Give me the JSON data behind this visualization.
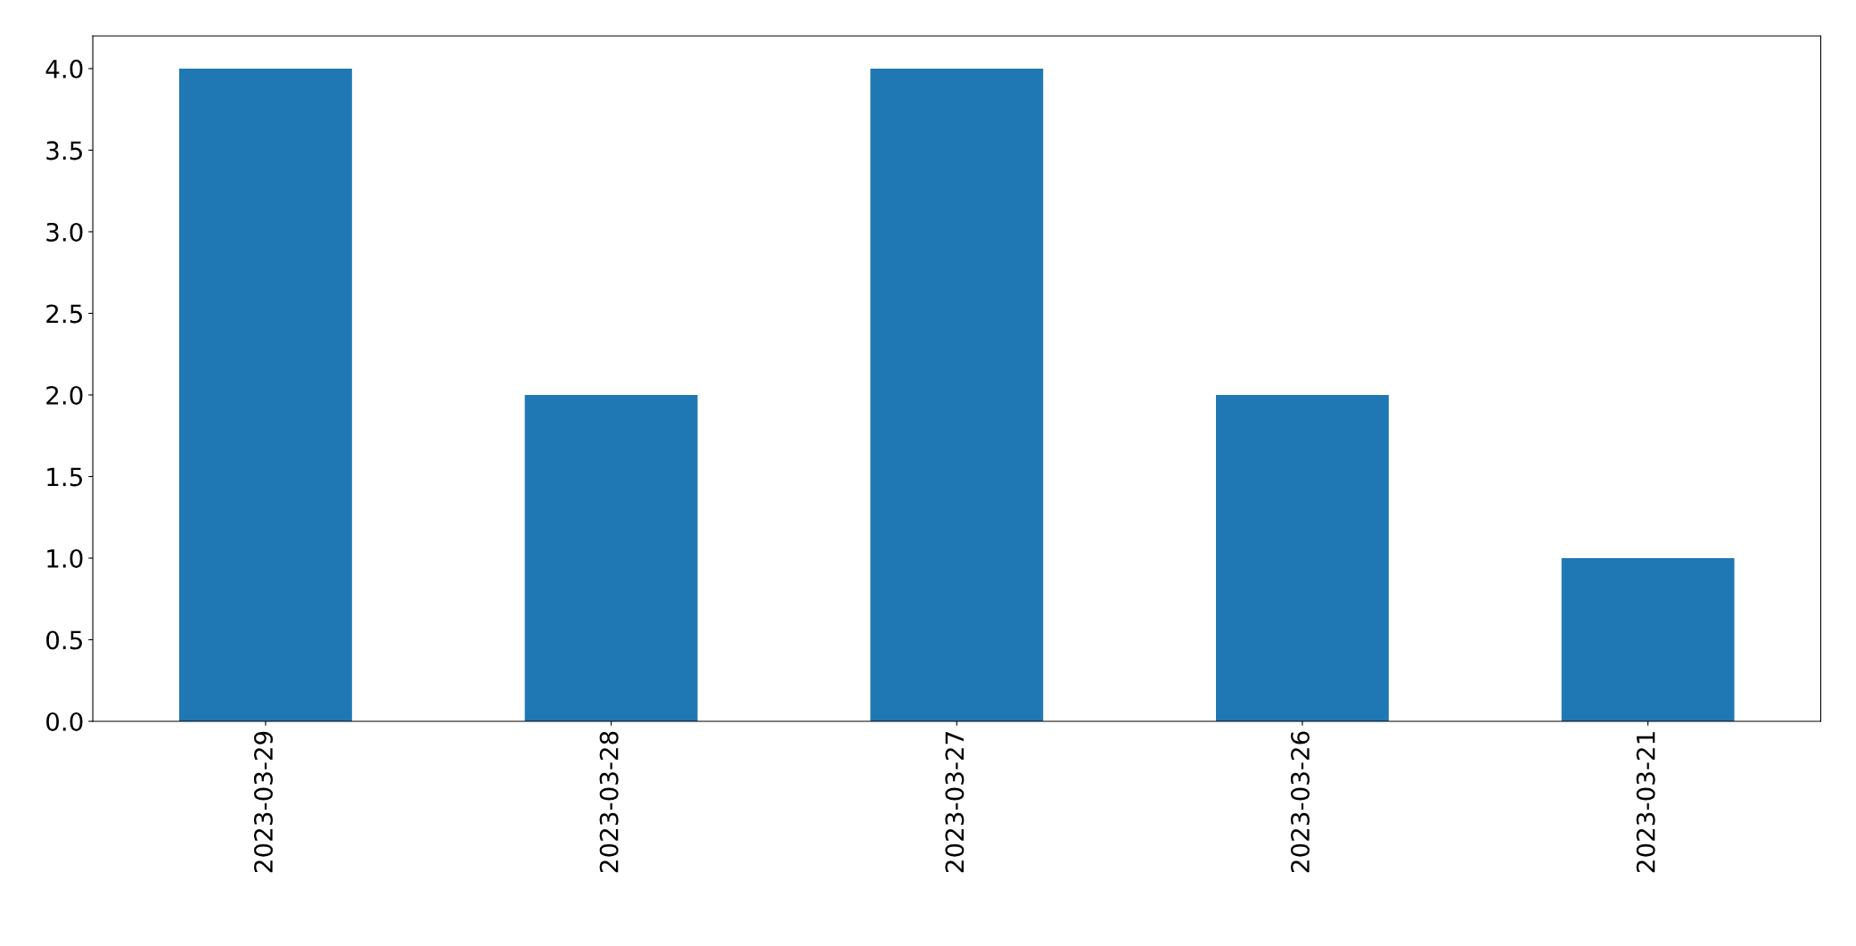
{
  "chart_data": {
    "type": "bar",
    "categories": [
      "2023-03-29",
      "2023-03-28",
      "2023-03-27",
      "2023-03-26",
      "2023-03-21"
    ],
    "values": [
      4,
      2,
      4,
      2,
      1
    ],
    "color": "#1f77b4",
    "ylim": [
      0,
      4.2
    ],
    "yticks": [
      {
        "value": 0,
        "label": "0.0"
      },
      {
        "value": 0.5,
        "label": "0.5"
      },
      {
        "value": 1,
        "label": "1.0"
      },
      {
        "value": 1.5,
        "label": "1.5"
      },
      {
        "value": 2,
        "label": "2.0"
      },
      {
        "value": 2.5,
        "label": "2.5"
      },
      {
        "value": 3,
        "label": "3.0"
      },
      {
        "value": 3.5,
        "label": "3.5"
      },
      {
        "value": 4,
        "label": "4.0"
      }
    ],
    "grid": false,
    "legend": false
  }
}
